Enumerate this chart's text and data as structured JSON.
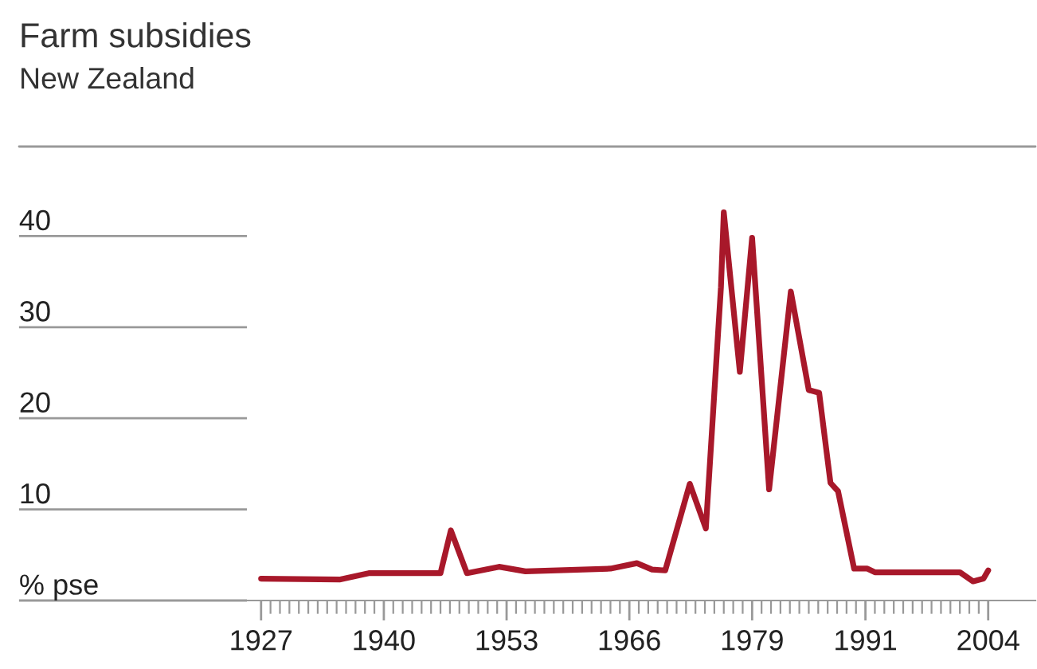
{
  "chart_data": {
    "type": "line",
    "title": "Farm subsidies",
    "subtitle": "New Zealand",
    "x": [
      1927,
      1935.3,
      1938.4,
      1946,
      1947.1,
      1948.8,
      1952.2,
      1955,
      1964,
      1966.8,
      1968.4,
      1969.8,
      1972.4,
      1974.1,
      1975.7,
      1976,
      1977.7,
      1979,
      1980.8,
      1983.1,
      1985,
      1986.1,
      1987.3,
      1988.1,
      1989.8,
      1991.2,
      1992,
      2001,
      2002.4,
      2003.5,
      2004
    ],
    "series": [
      {
        "color": "#a8182a",
        "values": [
          2.4,
          2.3,
          3.0,
          3.0,
          7.7,
          3.0,
          3.7,
          3.2,
          3.5,
          4.1,
          3.4,
          3.3,
          12.8,
          7.9,
          34.4,
          42.6,
          25.1,
          39.8,
          12.2,
          33.9,
          23.1,
          22.8,
          12.9,
          12.0,
          3.5,
          3.5,
          3.1,
          3.1,
          2.1,
          2.4,
          3.3
        ]
      }
    ],
    "xlim": [
      1925.5,
      2009
    ],
    "ylim": [
      0,
      50
    ],
    "xticks": [
      1927,
      {
        "value": 1928,
        "label": null
      },
      {
        "value": 1929,
        "label": null
      },
      {
        "value": 1930,
        "label": null
      },
      {
        "value": 1931,
        "label": null
      },
      {
        "value": 1932,
        "label": null
      },
      {
        "value": 1933,
        "label": null
      },
      {
        "value": 1934,
        "label": null
      },
      {
        "value": 1935,
        "label": null
      },
      {
        "value": 1936,
        "label": null
      },
      {
        "value": 1937,
        "label": null
      },
      {
        "value": 1938,
        "label": null
      },
      {
        "value": 1939,
        "label": null
      },
      1940,
      {
        "value": 1941,
        "label": null
      },
      {
        "value": 1942,
        "label": null
      },
      {
        "value": 1943,
        "label": null
      },
      {
        "value": 1944,
        "label": null
      },
      {
        "value": 1945,
        "label": null
      },
      {
        "value": 1946,
        "label": null
      },
      {
        "value": 1947,
        "label": null
      },
      {
        "value": 1948,
        "label": null
      },
      {
        "value": 1949,
        "label": null
      },
      {
        "value": 1950,
        "label": null
      },
      {
        "value": 1951,
        "label": null
      },
      {
        "value": 1952,
        "label": null
      },
      1953,
      {
        "value": 1954,
        "label": null
      },
      {
        "value": 1955,
        "label": null
      },
      {
        "value": 1956,
        "label": null
      },
      {
        "value": 1957,
        "label": null
      },
      {
        "value": 1958,
        "label": null
      },
      {
        "value": 1959,
        "label": null
      },
      {
        "value": 1960,
        "label": null
      },
      {
        "value": 1961,
        "label": null
      },
      {
        "value": 1962,
        "label": null
      },
      {
        "value": 1963,
        "label": null
      },
      {
        "value": 1964,
        "label": null
      },
      {
        "value": 1965,
        "label": null
      },
      1966,
      {
        "value": 1967,
        "label": null
      },
      {
        "value": 1968,
        "label": null
      },
      {
        "value": 1969,
        "label": null
      },
      {
        "value": 1970,
        "label": null
      },
      {
        "value": 1971,
        "label": null
      },
      {
        "value": 1972,
        "label": null
      },
      {
        "value": 1973,
        "label": null
      },
      {
        "value": 1974,
        "label": null
      },
      {
        "value": 1975,
        "label": null
      },
      {
        "value": 1976,
        "label": null
      },
      {
        "value": 1977,
        "label": null
      },
      {
        "value": 1978,
        "label": null
      },
      1979,
      {
        "value": 1980,
        "label": null
      },
      {
        "value": 1981,
        "label": null
      },
      {
        "value": 1982,
        "label": null
      },
      {
        "value": 1983,
        "label": null
      },
      {
        "value": 1984,
        "label": null
      },
      {
        "value": 1985,
        "label": null
      },
      {
        "value": 1986,
        "label": null
      },
      {
        "value": 1987,
        "label": null
      },
      {
        "value": 1988,
        "label": null
      },
      {
        "value": 1989,
        "label": null
      },
      {
        "value": 1990,
        "label": null
      },
      1991,
      {
        "value": 1992,
        "label": null
      },
      {
        "value": 1993,
        "label": null
      },
      {
        "value": 1994,
        "label": null
      },
      {
        "value": 1995,
        "label": null
      },
      {
        "value": 1996,
        "label": null
      },
      {
        "value": 1997,
        "label": null
      },
      {
        "value": 1998,
        "label": null
      },
      {
        "value": 1999,
        "label": null
      },
      {
        "value": 2000,
        "label": null
      },
      {
        "value": 2001,
        "label": null
      },
      {
        "value": 2002,
        "label": null
      },
      {
        "value": 2003,
        "label": null
      },
      2004
    ],
    "yticks": [
      {
        "value": 0,
        "label": "% pse"
      },
      10,
      20,
      30,
      40
    ],
    "grid": false,
    "legend": false,
    "marker": "none",
    "line_style": "solid"
  }
}
